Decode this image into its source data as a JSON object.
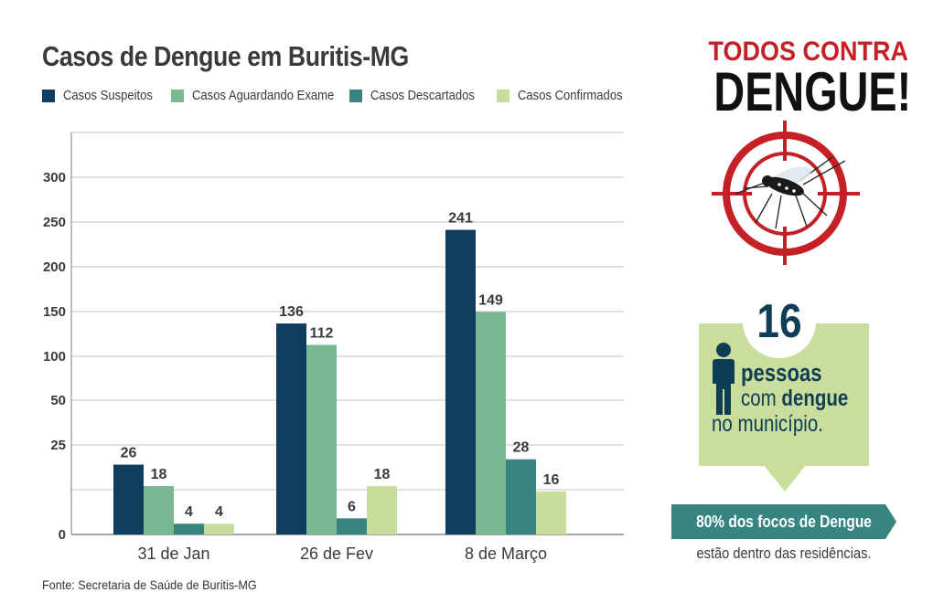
{
  "chart_data": {
    "type": "bar",
    "title": "Casos de Dengue em Buritis-MG",
    "categories": [
      "31 de Jan",
      "26 de Fev",
      "8 de Março"
    ],
    "series": [
      {
        "name": "Casos Suspeitos",
        "color": "#0e3d5e",
        "values": [
          26,
          136,
          241
        ]
      },
      {
        "name": "Casos Aguardando Exame",
        "color": "#79b791",
        "values": [
          18,
          112,
          149
        ]
      },
      {
        "name": "Casos Descartados",
        "color": "#378480",
        "values": [
          4,
          6,
          28
        ]
      },
      {
        "name": "Casos Confirmados",
        "color": "#c7de9a",
        "values": [
          4,
          18,
          16
        ]
      }
    ],
    "y_ticks": [
      "0",
      "25",
      "50",
      "100",
      "150",
      "200",
      "250",
      "300"
    ],
    "axis_note": "non-uniform y axis: 0–50 spans the same height as 50–100",
    "grid": true,
    "legend": "top-left"
  },
  "source": "Fonte: Secretaria de Saúde de Buritis-MG",
  "campaign": {
    "line1": "TODOS CONTRA",
    "line2": "DENGUE!",
    "icon": "mosquito-target-icon",
    "count": "16",
    "count_line1": "pessoas",
    "count_line2_a": "com ",
    "count_line2_b": "dengue",
    "count_line3": "no município.",
    "banner": "80% dos focos de Dengue",
    "banner_sub": "estão dentro das residências."
  },
  "colors": {
    "brand_red": "#c62027",
    "dark_blue": "#0e3d55",
    "light_green": "#c9de9c",
    "teal": "#378480"
  }
}
